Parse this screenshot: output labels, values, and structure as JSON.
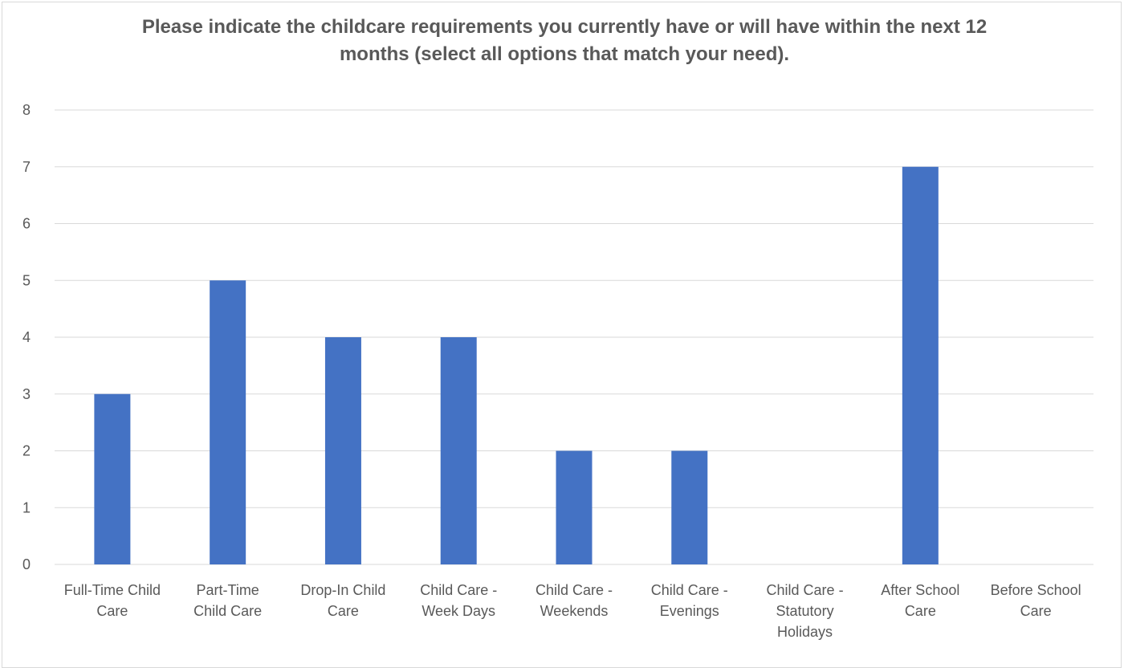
{
  "chart_data": {
    "type": "bar",
    "title": "Please indicate the childcare requirements you currently have or will have within the next 12 months (select all options that match your need).",
    "categories": [
      [
        "Full-Time Child",
        "Care"
      ],
      [
        "Part-Time",
        "Child Care"
      ],
      [
        "Drop-In Child",
        "Care"
      ],
      [
        "Child Care -",
        "Week Days"
      ],
      [
        "Child Care -",
        "Weekends"
      ],
      [
        "Child Care -",
        "Evenings"
      ],
      [
        "Child Care -",
        "Statutory",
        "Holidays"
      ],
      [
        "After School",
        "Care"
      ],
      [
        "Before School",
        "Care"
      ]
    ],
    "values": [
      3,
      5,
      4,
      4,
      2,
      2,
      0,
      7,
      0
    ],
    "ylim": [
      0,
      8
    ],
    "yticks": [
      0,
      1,
      2,
      3,
      4,
      5,
      6,
      7,
      8
    ],
    "grid": true,
    "xlabel": "",
    "ylabel": "",
    "colors": {
      "bar": "#4472c4",
      "grid": "#d9d9d9",
      "text": "#595959"
    }
  }
}
